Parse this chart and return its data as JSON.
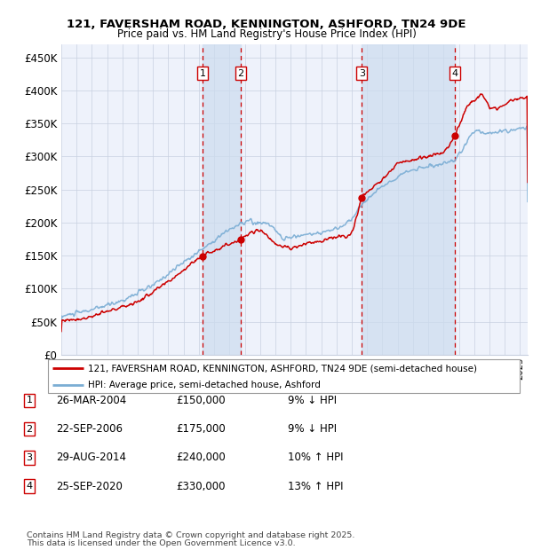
{
  "title1": "121, FAVERSHAM ROAD, KENNINGTON, ASHFORD, TN24 9DE",
  "title2": "Price paid vs. HM Land Registry's House Price Index (HPI)",
  "ylim": [
    0,
    470000
  ],
  "yticks": [
    0,
    50000,
    100000,
    150000,
    200000,
    250000,
    300000,
    350000,
    400000,
    450000
  ],
  "ytick_labels": [
    "£0",
    "£50K",
    "£100K",
    "£150K",
    "£200K",
    "£250K",
    "£300K",
    "£350K",
    "£400K",
    "£450K"
  ],
  "xlim_start": 1995.0,
  "xlim_end": 2025.5,
  "transactions": [
    {
      "num": 1,
      "date": "26-MAR-2004",
      "price": 150000,
      "pct": "9%",
      "dir": "↓",
      "year": 2004.23
    },
    {
      "num": 2,
      "date": "22-SEP-2006",
      "price": 175000,
      "pct": "9%",
      "dir": "↓",
      "year": 2006.72
    },
    {
      "num": 3,
      "date": "29-AUG-2014",
      "price": 240000,
      "pct": "10%",
      "dir": "↑",
      "year": 2014.66
    },
    {
      "num": 4,
      "date": "25-SEP-2020",
      "price": 330000,
      "pct": "13%",
      "dir": "↑",
      "year": 2020.73
    }
  ],
  "legend_line1": "121, FAVERSHAM ROAD, KENNINGTON, ASHFORD, TN24 9DE (semi-detached house)",
  "legend_line2": "HPI: Average price, semi-detached house, Ashford",
  "footnote1": "Contains HM Land Registry data © Crown copyright and database right 2025.",
  "footnote2": "This data is licensed under the Open Government Licence v3.0.",
  "red_color": "#cc0000",
  "blue_color": "#7aadd4",
  "bg_color": "#eef2fb",
  "shade_color": "#cddcef",
  "grid_color": "#c8d0e0"
}
